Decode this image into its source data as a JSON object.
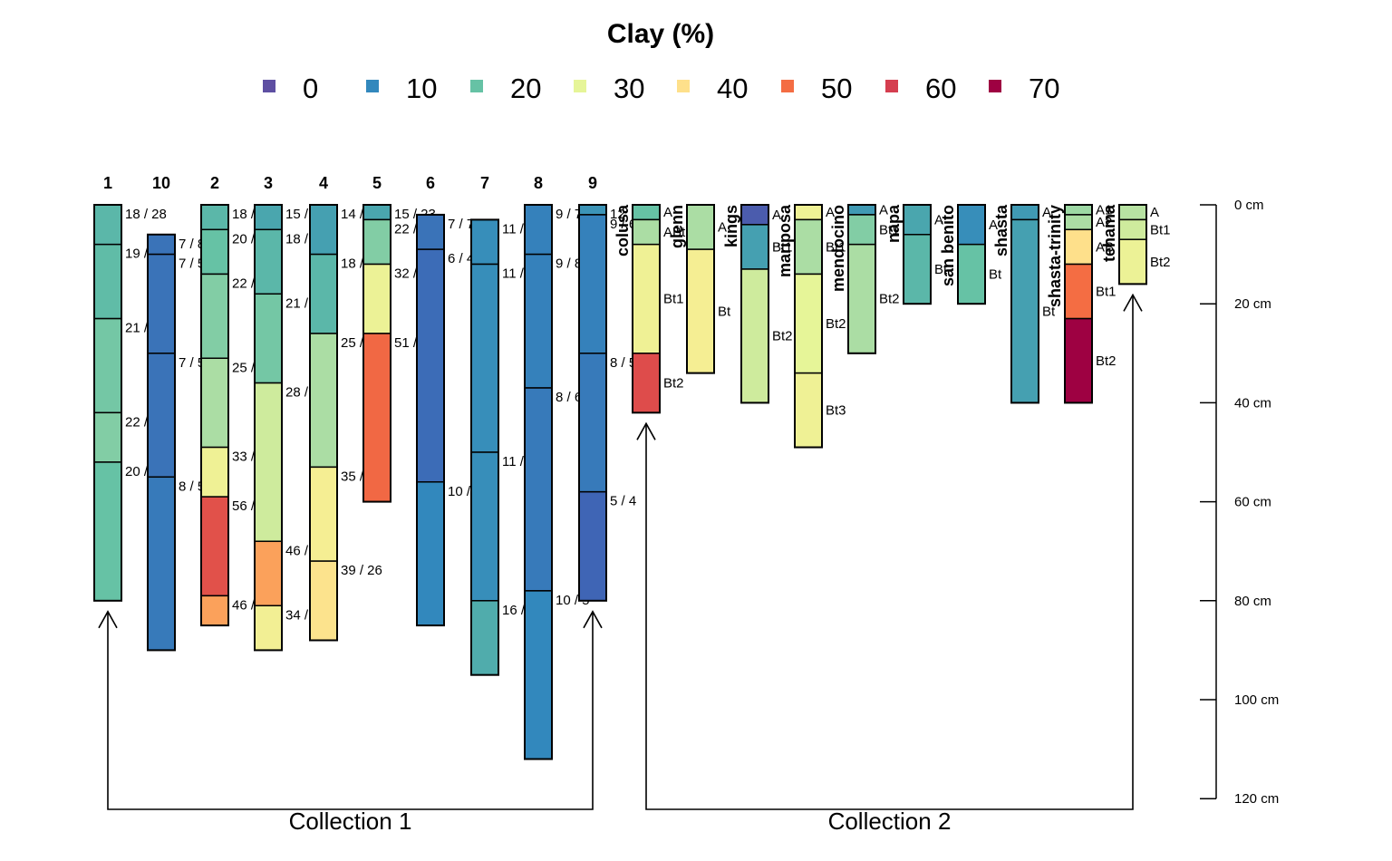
{
  "title": "Clay (%)",
  "legend": {
    "items": [
      {
        "label": "0",
        "color": "#5E4FA2"
      },
      {
        "label": "10",
        "color": "#3288BD"
      },
      {
        "label": "20",
        "color": "#66C2A5"
      },
      {
        "label": "30",
        "color": "#E6F598"
      },
      {
        "label": "40",
        "color": "#FEE08B"
      },
      {
        "label": "50",
        "color": "#F46D43"
      },
      {
        "label": "60",
        "color": "#D53E4F"
      },
      {
        "label": "70",
        "color": "#9E0142"
      }
    ]
  },
  "depth_axis": {
    "ticks": [
      {
        "depth": 0,
        "label": "0 cm"
      },
      {
        "depth": 20,
        "label": "20 cm"
      },
      {
        "depth": 40,
        "label": "40 cm"
      },
      {
        "depth": 60,
        "label": "60 cm"
      },
      {
        "depth": 80,
        "label": "80 cm"
      },
      {
        "depth": 100,
        "label": "100 cm"
      },
      {
        "depth": 120,
        "label": "120 cm"
      }
    ]
  },
  "collections": [
    {
      "label": "Collection 1",
      "first_profile": "1",
      "last_profile": "9"
    },
    {
      "label": "Collection 2",
      "first_profile": "colusa",
      "last_profile": "tehama"
    }
  ],
  "chart_data": {
    "type": "soil-profile-sketch",
    "title": "Clay (%)",
    "depth_unit": "cm",
    "depth_range": [
      0,
      120
    ],
    "color_scale_breaks": [
      0,
      10,
      20,
      30,
      40,
      50,
      60,
      70
    ],
    "profiles": [
      {
        "id": "1",
        "group": 1,
        "top": 0,
        "horizons": [
          {
            "top": 0,
            "bottom": 8,
            "clay": 18,
            "label": "18 / 28"
          },
          {
            "top": 8,
            "bottom": 23,
            "clay": 19,
            "label": "19 /"
          },
          {
            "top": 23,
            "bottom": 42,
            "clay": 21,
            "label": "21 /"
          },
          {
            "top": 42,
            "bottom": 52,
            "clay": 22,
            "label": "22 /"
          },
          {
            "top": 52,
            "bottom": 80,
            "clay": 20,
            "label": "20 /"
          }
        ]
      },
      {
        "id": "10",
        "group": 1,
        "top": 6,
        "horizons": [
          {
            "top": 6,
            "bottom": 10,
            "clay": 7,
            "label": "7 / 8"
          },
          {
            "top": 10,
            "bottom": 30,
            "clay": 7,
            "label": "7 / 5"
          },
          {
            "top": 30,
            "bottom": 55,
            "clay": 7,
            "label": "7 / 5"
          },
          {
            "top": 55,
            "bottom": 90,
            "clay": 8,
            "label": "8 / 5"
          }
        ]
      },
      {
        "id": "2",
        "group": 1,
        "top": 0,
        "horizons": [
          {
            "top": 0,
            "bottom": 5,
            "clay": 18,
            "label": "18 /"
          },
          {
            "top": 5,
            "bottom": 14,
            "clay": 20,
            "label": "20 /"
          },
          {
            "top": 14,
            "bottom": 31,
            "clay": 22,
            "label": "22 /"
          },
          {
            "top": 31,
            "bottom": 49,
            "clay": 25,
            "label": "25 /"
          },
          {
            "top": 49,
            "bottom": 59,
            "clay": 33,
            "label": "33 /"
          },
          {
            "top": 59,
            "bottom": 79,
            "clay": 56,
            "label": "56 /"
          },
          {
            "top": 79,
            "bottom": 85,
            "clay": 46,
            "label": "46 /"
          }
        ]
      },
      {
        "id": "3",
        "group": 1,
        "top": 0,
        "horizons": [
          {
            "top": 0,
            "bottom": 5,
            "clay": 15,
            "label": "15 /"
          },
          {
            "top": 5,
            "bottom": 18,
            "clay": 18,
            "label": "18 /"
          },
          {
            "top": 18,
            "bottom": 36,
            "clay": 21,
            "label": "21 /"
          },
          {
            "top": 36,
            "bottom": 68,
            "clay": 28,
            "label": "28 /"
          },
          {
            "top": 68,
            "bottom": 81,
            "clay": 46,
            "label": "46 /"
          },
          {
            "top": 81,
            "bottom": 90,
            "clay": 34,
            "label": "34 /"
          }
        ]
      },
      {
        "id": "4",
        "group": 1,
        "top": 0,
        "horizons": [
          {
            "top": 0,
            "bottom": 10,
            "clay": 14,
            "label": "14 /"
          },
          {
            "top": 10,
            "bottom": 26,
            "clay": 18,
            "label": "18 /"
          },
          {
            "top": 26,
            "bottom": 53,
            "clay": 25,
            "label": "25 /"
          },
          {
            "top": 53,
            "bottom": 72,
            "clay": 35,
            "label": "35 / 22"
          },
          {
            "top": 72,
            "bottom": 88,
            "clay": 39,
            "label": "39 / 26"
          }
        ]
      },
      {
        "id": "5",
        "group": 1,
        "top": 0,
        "horizons": [
          {
            "top": 0,
            "bottom": 3,
            "clay": 15,
            "label": "15 / 23"
          },
          {
            "top": 3,
            "bottom": 12,
            "clay": 22,
            "label": "22 /"
          },
          {
            "top": 12,
            "bottom": 26,
            "clay": 32,
            "label": "32 /"
          },
          {
            "top": 26,
            "bottom": 60,
            "clay": 51,
            "label": "51 /"
          }
        ]
      },
      {
        "id": "6",
        "group": 1,
        "top": 2,
        "horizons": [
          {
            "top": 2,
            "bottom": 9,
            "clay": 7,
            "label": "7 / 7"
          },
          {
            "top": 9,
            "bottom": 56,
            "clay": 6,
            "label": "6 / 4"
          },
          {
            "top": 56,
            "bottom": 85,
            "clay": 10,
            "label": "10 /"
          }
        ]
      },
      {
        "id": "7",
        "group": 1,
        "top": 3,
        "horizons": [
          {
            "top": 3,
            "bottom": 12,
            "clay": 11,
            "label": "11 /"
          },
          {
            "top": 12,
            "bottom": 50,
            "clay": 11,
            "label": "11 /"
          },
          {
            "top": 50,
            "bottom": 80,
            "clay": 11,
            "label": "11 /"
          },
          {
            "top": 80,
            "bottom": 95,
            "clay": 16,
            "label": "16 /"
          }
        ]
      },
      {
        "id": "8",
        "group": 1,
        "top": 0,
        "horizons": [
          {
            "top": 0,
            "bottom": 10,
            "clay": 9,
            "label": "9 / 7"
          },
          {
            "top": 10,
            "bottom": 37,
            "clay": 9,
            "label": "9 / 8"
          },
          {
            "top": 37,
            "bottom": 78,
            "clay": 8,
            "label": "8 / 6"
          },
          {
            "top": 78,
            "bottom": 112,
            "clay": 10,
            "label": "10 / 5"
          }
        ]
      },
      {
        "id": "9",
        "group": 1,
        "top": 0,
        "horizons": [
          {
            "top": 0,
            "bottom": 2,
            "clay": 12,
            "label": "12"
          },
          {
            "top": 2,
            "bottom": 30,
            "clay": 9,
            "label": "9 / 6"
          },
          {
            "top": 30,
            "bottom": 58,
            "clay": 8,
            "label": "8 / 5"
          },
          {
            "top": 58,
            "bottom": 80,
            "clay": 5,
            "label": "5 / 4"
          }
        ]
      },
      {
        "id": "colusa",
        "group": 2,
        "top": 0,
        "horizons": [
          {
            "top": 0,
            "bottom": 3,
            "clay": 20,
            "label": "A"
          },
          {
            "top": 3,
            "bottom": 8,
            "clay": 25,
            "label": "ABt"
          },
          {
            "top": 8,
            "bottom": 30,
            "clay": 33,
            "label": "Bt1"
          },
          {
            "top": 30,
            "bottom": 42,
            "clay": 57,
            "label": "Bt2"
          }
        ]
      },
      {
        "id": "glenn",
        "group": 2,
        "top": 0,
        "horizons": [
          {
            "top": 0,
            "bottom": 9,
            "clay": 25,
            "label": "A"
          },
          {
            "top": 9,
            "bottom": 34,
            "clay": 35,
            "label": "Bt"
          }
        ]
      },
      {
        "id": "kings",
        "group": 2,
        "top": 0,
        "horizons": [
          {
            "top": 0,
            "bottom": 4,
            "clay": 3,
            "label": "A"
          },
          {
            "top": 4,
            "bottom": 13,
            "clay": 14,
            "label": "Bt1"
          },
          {
            "top": 13,
            "bottom": 40,
            "clay": 28,
            "label": "Bt2"
          }
        ]
      },
      {
        "id": "mariposa",
        "group": 2,
        "top": 0,
        "horizons": [
          {
            "top": 0,
            "bottom": 3,
            "clay": 33,
            "label": "A"
          },
          {
            "top": 3,
            "bottom": 14,
            "clay": 25,
            "label": "Bt1"
          },
          {
            "top": 14,
            "bottom": 34,
            "clay": 30,
            "label": "Bt2"
          },
          {
            "top": 34,
            "bottom": 49,
            "clay": 33,
            "label": "Bt3"
          }
        ]
      },
      {
        "id": "mendocino",
        "group": 2,
        "top": 0,
        "horizons": [
          {
            "top": 0,
            "bottom": 2,
            "clay": 13,
            "label": "A"
          },
          {
            "top": 2,
            "bottom": 8,
            "clay": 22,
            "label": "Bt1"
          },
          {
            "top": 8,
            "bottom": 30,
            "clay": 25,
            "label": "Bt2"
          }
        ]
      },
      {
        "id": "napa",
        "group": 2,
        "top": 0,
        "horizons": [
          {
            "top": 0,
            "bottom": 6,
            "clay": 15,
            "label": "A"
          },
          {
            "top": 6,
            "bottom": 20,
            "clay": 18,
            "label": "Bt"
          }
        ]
      },
      {
        "id": "san benito",
        "group": 2,
        "top": 0,
        "horizons": [
          {
            "top": 0,
            "bottom": 8,
            "clay": 11,
            "label": "A"
          },
          {
            "top": 8,
            "bottom": 20,
            "clay": 20,
            "label": "Bt"
          }
        ]
      },
      {
        "id": "shasta",
        "group": 2,
        "top": 0,
        "horizons": [
          {
            "top": 0,
            "bottom": 3,
            "clay": 13,
            "label": "A"
          },
          {
            "top": 3,
            "bottom": 40,
            "clay": 14,
            "label": "Bt"
          }
        ]
      },
      {
        "id": "shasta-trinity",
        "group": 2,
        "top": 0,
        "horizons": [
          {
            "top": 0,
            "bottom": 2,
            "clay": 24,
            "label": "A1"
          },
          {
            "top": 2,
            "bottom": 5,
            "clay": 25,
            "label": "A2"
          },
          {
            "top": 5,
            "bottom": 12,
            "clay": 40,
            "label": "AB"
          },
          {
            "top": 12,
            "bottom": 23,
            "clay": 50,
            "label": "Bt1"
          },
          {
            "top": 23,
            "bottom": 40,
            "clay": 70,
            "label": "Bt2"
          }
        ]
      },
      {
        "id": "tehama",
        "group": 2,
        "top": 0,
        "horizons": [
          {
            "top": 0,
            "bottom": 3,
            "clay": 26,
            "label": "A"
          },
          {
            "top": 3,
            "bottom": 7,
            "clay": 28,
            "label": "Bt1"
          },
          {
            "top": 7,
            "bottom": 16,
            "clay": 32,
            "label": "Bt2"
          }
        ]
      }
    ]
  }
}
